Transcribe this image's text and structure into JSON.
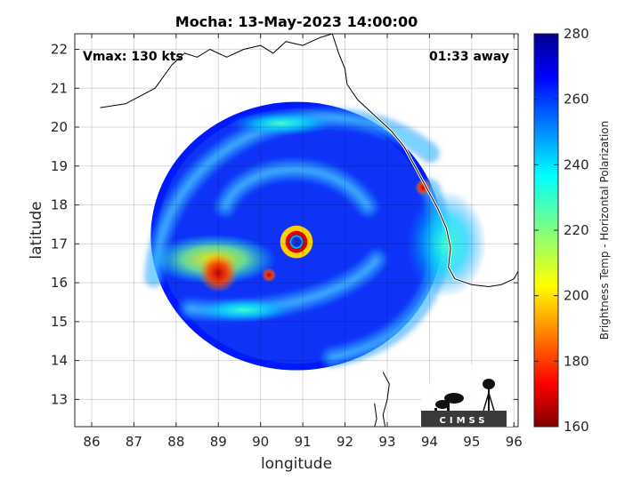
{
  "title": "Mocha: 13-May-2023 14:00:00",
  "annotations": {
    "vmax": "Vmax: 130 kts",
    "timing": "01:33 away"
  },
  "logo": {
    "text": "CIMSS"
  },
  "colorbar": {
    "label": "Brightness Temp - Horizontal Polarization",
    "ticks": [
      160,
      180,
      200,
      220,
      240,
      260,
      280
    ],
    "range": [
      160,
      280
    ],
    "colormap": "jet",
    "colors": [
      "#00008f",
      "#0000ff",
      "#00ffff",
      "#ffff00",
      "#ff0000",
      "#800000"
    ]
  },
  "chart_data": {
    "type": "heatmap",
    "title": "Mocha: 13-May-2023 14:00:00",
    "xlabel": "longitude",
    "ylabel": "latitude",
    "xlim": [
      85.6,
      96.1
    ],
    "ylim": [
      12.3,
      22.4
    ],
    "xticks": [
      86,
      87,
      88,
      89,
      90,
      91,
      92,
      93,
      94,
      95,
      96
    ],
    "yticks": [
      13,
      14,
      15,
      16,
      17,
      18,
      19,
      20,
      21,
      22
    ],
    "grid": true,
    "swath": {
      "center_lon": 90.85,
      "center_lat": 17.2,
      "radius_deg": 3.45
    },
    "storm_center": {
      "lon": 90.85,
      "lat": 17.05
    },
    "eye_radius_deg": 0.12,
    "eyewall_radius_deg": 0.26,
    "background_tb": 262,
    "features": [
      {
        "name": "eyewall",
        "lon": 90.85,
        "lat": 17.05,
        "tb": 168
      },
      {
        "name": "western rainband",
        "lon": 88.9,
        "lat": 16.6,
        "tb": 205
      },
      {
        "name": "western rainband core",
        "lon": 89.0,
        "lat": 16.25,
        "tb": 178
      },
      {
        "name": "southern rainband",
        "lon": 89.6,
        "lat": 15.3,
        "tb": 240
      },
      {
        "name": "northern rainband",
        "lon": 90.5,
        "lat": 20.1,
        "tb": 245
      },
      {
        "name": "eastern rainband",
        "lon": 94.4,
        "lat": 17.0,
        "tb": 238
      },
      {
        "name": "convective cell",
        "lon": 93.85,
        "lat": 18.45,
        "tb": 175
      },
      {
        "name": "convective cell",
        "lon": 90.2,
        "lat": 16.2,
        "tb": 185
      }
    ]
  }
}
